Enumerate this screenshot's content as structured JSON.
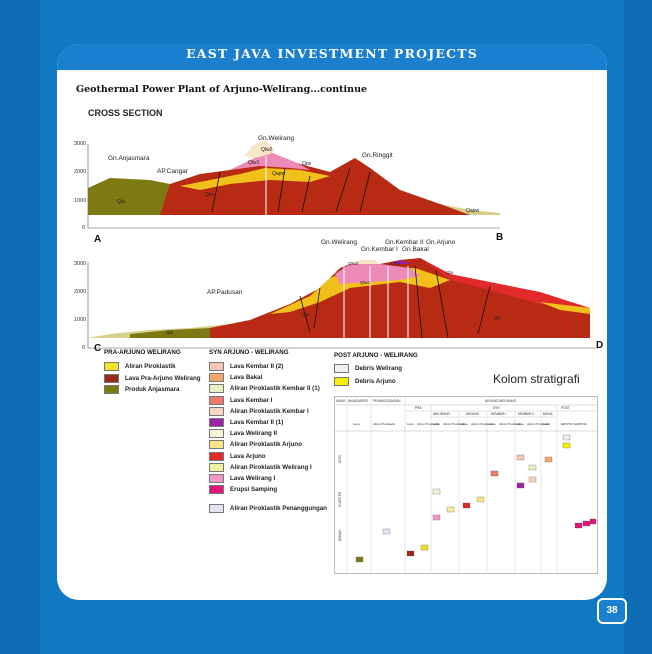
{
  "header": {
    "title": "EAST JAVA INVESTMENT PROJECTS"
  },
  "subtitle": "Geothermal Power Plant of Arjuno-Welirang...continue",
  "section_title": "CROSS SECTION",
  "section_ab": {
    "labels": [
      "Gn.Welirang",
      "Gn.Anjasmara",
      "AP.Cangar",
      "Gn.Ringgit"
    ],
    "unit_labels": [
      "Qlw2",
      "Qlw1",
      "Qapw",
      "Qla",
      "Qlw",
      "Qps",
      "Qapw"
    ],
    "axis": [
      "3000",
      "2000",
      "1000",
      "0"
    ],
    "corners": [
      "A",
      "B"
    ]
  },
  "section_cd": {
    "labels": [
      "Gn.Welirang",
      "Gn.Kembar II",
      "Gn.Kembar I",
      "Gn.Bakal",
      "Gn.Arjuno",
      "AP.Padusan"
    ],
    "unit_labels": [
      "Qlw2",
      "Qlk2",
      "Qlw1",
      "Qla",
      "Qlw",
      "Qla",
      "Qlp"
    ],
    "axis": [
      "3000",
      "2000",
      "1000",
      "0"
    ],
    "corners": [
      "C",
      "D"
    ]
  },
  "legend": {
    "pra": {
      "title": "PRA-ARJUNO WELIRANG",
      "items": [
        {
          "label": "Aliran Piroklastik",
          "color": "#f2e22a"
        },
        {
          "label": "Lava Pra-Arjuno Welirang",
          "color": "#9c2a1a"
        },
        {
          "label": "Produk Anjasmara",
          "color": "#7d7a14"
        }
      ]
    },
    "syn": {
      "title": "SYN ARJUNO - WELIRANG",
      "items": [
        {
          "label": "Lava Kembar II (2)",
          "color": "#f4c6b8"
        },
        {
          "label": "Lava Bakal",
          "color": "#f2a86a"
        },
        {
          "label": "Aliran Piroklastik Kembar II (1)",
          "color": "#e9f0c0"
        },
        {
          "label": "Lava Kembar I",
          "color": "#ee7a6a"
        },
        {
          "label": "Aliran Piroklastik Kembar I",
          "color": "#f8d6c2"
        },
        {
          "label": "Lava Kembar II (1)",
          "color": "#9a22a6"
        },
        {
          "label": "Lava Welirang II",
          "color": "#f6f2d8"
        },
        {
          "label": "Aliran Piroklastik Arjuno",
          "color": "#f9e48a"
        },
        {
          "label": "Lava Arjuno",
          "color": "#e12a2a"
        },
        {
          "label": "Aliran Piroklastik Welirang I",
          "color": "#f2f0a0"
        },
        {
          "label": "Lava Welirang I",
          "color": "#ef9ac6"
        },
        {
          "label": "Erupsi Samping",
          "color": "#e2167a"
        },
        {
          "label": "Aliran Piroklastik Penanggungan",
          "color": "#e6e4f2"
        }
      ]
    },
    "post": {
      "title": "POST  ARJUNO - WELIRANG",
      "items": [
        {
          "label": "Debris Welirang",
          "color": "#efefef"
        },
        {
          "label": "Debris Arjuno",
          "color": "#f6f000"
        }
      ]
    }
  },
  "kolom": {
    "title": "Kolom stratigrafi",
    "header_row1": [
      "UMUR",
      "ANJASMORO",
      "PENANGGUNGAN",
      "ARJUNO-WELIRANG"
    ],
    "header_row2": [
      "PRA",
      "SYN",
      "POST"
    ],
    "header_row3": [
      "WELIRANG",
      "ARJUNO",
      "KEMBAR I",
      "KEMBAR II",
      "BAKAL"
    ],
    "cols": [
      "Lava",
      "Aliran Piroklastik",
      "Lava",
      "Aliran Piroklastik",
      "Lava",
      "Aliran Piroklastik",
      "Lava",
      "Aliran Piroklastik",
      "Lava",
      "Aliran Piroklastik",
      "Lava",
      "Aliran Piroklastik",
      "Lava",
      "ERUPSI SAMPING"
    ],
    "ages": [
      "ATAS",
      "KUARTER",
      "BAWAH"
    ]
  },
  "page_number": "38"
}
